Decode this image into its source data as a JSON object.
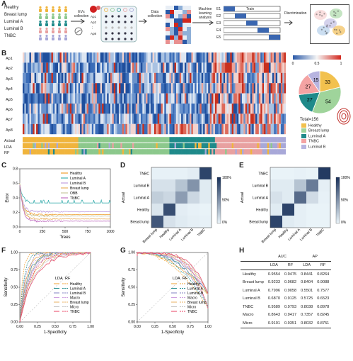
{
  "panel_labels": {
    "A": "A",
    "B": "B",
    "C": "C",
    "D": "D",
    "E": "E",
    "F": "F",
    "G": "G",
    "H": "H"
  },
  "panelA": {
    "groups": [
      "Healthy",
      "Breast lump",
      "Luminal A",
      "Luminal B",
      "TNBC"
    ],
    "group_colors": [
      "#f0b43c",
      "#8cc88c",
      "#1f8a8a",
      "#e8a0a0",
      "#a8a8d8"
    ],
    "step1": "EVs\ncollection",
    "plate_labels": [
      "Ap1",
      "Ap2",
      "⋮",
      "Ap8"
    ],
    "step2": "Data\ncollection",
    "step3": "Machine\nlearning\nanalysis",
    "folds": [
      "E1",
      "E2",
      "E3",
      "E4",
      "E5"
    ],
    "train_label": "Train",
    "step4": "Discrimination"
  },
  "panelB": {
    "rows": [
      "Ap1",
      "Ap2",
      "Ap3",
      "Ap4",
      "Ap5",
      "Ap6",
      "Ap7",
      "Ap8"
    ],
    "annot_rows": [
      "Actual",
      "LDA",
      "RF"
    ],
    "colorbar_ticks": [
      "0",
      "0.5",
      "1"
    ],
    "total_label": "Total=156",
    "pie_legend": [
      "Healthy",
      "Breast lump",
      "Luminal A",
      "TNBC",
      "Luminal B"
    ]
  },
  "panelC": {
    "legend": [
      "Healthy",
      "Luminal A",
      "Luminal B",
      "Breast lump",
      "OBB",
      "TNBC"
    ],
    "legend_colors": [
      "#f0a030",
      "#40b0b0",
      "#c0a0e0",
      "#e8b060",
      "#c8c8a0",
      "#c070c0"
    ],
    "xlabel": "Trees",
    "ylabel": "Error",
    "xticks": [
      "0",
      "250",
      "500",
      "750",
      "1000"
    ],
    "yticks": [
      "0.0",
      "0.2",
      "0.4",
      "0.6",
      "0.8"
    ]
  },
  "panelD": {
    "classes": [
      "Breast lump",
      "Healthy",
      "Luminal A",
      "Luminal B",
      "TNBC"
    ],
    "ylabel": "Actual",
    "xlabel": "Prediction-LDA",
    "accuracy": "Accuracy : 0.7308",
    "cb_ticks": [
      "100%",
      "50%",
      "0%"
    ]
  },
  "panelE": {
    "classes": [
      "Breast lump",
      "Healthy",
      "Luminal A",
      "Luminal B",
      "TNBC"
    ],
    "ylabel": "Actual",
    "xlabel": "Prediction-RF",
    "accuracy": "Accuracy : 0.8333",
    "cb_ticks": [
      "100%",
      "50%",
      "0%"
    ]
  },
  "panelF": {
    "xlabel": "1-Specificity",
    "ylabel": "Sensitivity",
    "xticks": [
      "0.00",
      "0.25",
      "0.50",
      "0.75",
      "1.00"
    ],
    "yticks": [
      "0.00",
      "0.25",
      "0.50",
      "0.75",
      "1.00"
    ],
    "legend_header": [
      "LDA",
      "RF"
    ],
    "legend": [
      "Healthy",
      "Luminal A",
      "Luminal B",
      "Macro",
      "Breast lump",
      "Micro",
      "TNBC"
    ],
    "legend_colors": [
      "#f0a030",
      "#1f8a8a",
      "#8080c0",
      "#d0a0e0",
      "#e8b060",
      "#c0c0c0",
      "#e84060"
    ]
  },
  "panelG": {
    "xlabel": "1-Specificity",
    "ylabel": "Sensitivity",
    "xticks": [
      "0.00",
      "0.25",
      "0.50",
      "0.75",
      "1.00"
    ],
    "yticks": [
      "0.00",
      "0.25",
      "0.50",
      "0.75",
      "1.00"
    ],
    "legend_header": [
      "LDA",
      "RF"
    ],
    "legend": [
      "Healthy",
      "Luminal A",
      "Luminal B",
      "Macro",
      "Breast lump",
      "Micro",
      "TNBC"
    ],
    "legend_colors": [
      "#f0a030",
      "#1f8a8a",
      "#8080c0",
      "#d0a0e0",
      "#e8b060",
      "#c0c0c0",
      "#e84060"
    ]
  },
  "panelH": {
    "header_groups": [
      "AUC",
      "AP"
    ],
    "sub_headers": [
      "LDA",
      "RF",
      "LDA",
      "RF"
    ],
    "rows": [
      {
        "label": "Healthy",
        "values": [
          "0.9554",
          "0.9475",
          "0.8441",
          "0.8264"
        ]
      },
      {
        "label": "Breast lump",
        "values": [
          "0.9233",
          "0.9682",
          "0.8404",
          "0.9088"
        ]
      },
      {
        "label": "Luminal A",
        "values": [
          "0.7996",
          "0.9058",
          "0.5501",
          "0.7577"
        ]
      },
      {
        "label": "Luminal B",
        "values": [
          "0.6870",
          "0.9125",
          "0.5725",
          "0.6523"
        ]
      },
      {
        "label": "TNBC",
        "values": [
          "0.9589",
          "0.9793",
          "0.8038",
          "0.8978"
        ]
      },
      {
        "label": "Macro",
        "values": [
          "0.8643",
          "0.9417",
          "0.7357",
          "0.8245"
        ]
      },
      {
        "label": "Micro",
        "values": [
          "0.9101",
          "0.9351",
          "0.8032",
          "0.8751"
        ]
      }
    ]
  },
  "chart_data": [
    {
      "type": "pie",
      "title": "",
      "categories": [
        "Healthy",
        "Breast lump",
        "Luminal A",
        "TNBC",
        "Luminal B"
      ],
      "values": [
        33,
        54,
        27,
        27,
        15
      ],
      "colors": [
        "#f2c14e",
        "#9fd49b",
        "#1f8a8a",
        "#f4a3a3",
        "#b7b4e0"
      ]
    },
    {
      "type": "heatmap",
      "title": "",
      "rows": [
        "Breast lump",
        "Healthy",
        "Luminal A",
        "Luminal B",
        "TNBC"
      ],
      "columns": [
        "Breast lump",
        "Healthy",
        "Luminal A",
        "Luminal B",
        "TNBC"
      ],
      "values": [
        [
          0.8,
          0.1,
          0.05,
          0.03,
          0.02
        ],
        [
          0.08,
          0.85,
          0.04,
          0.02,
          0.01
        ],
        [
          0.2,
          0.15,
          0.45,
          0.15,
          0.05
        ],
        [
          0.1,
          0.1,
          0.25,
          0.5,
          0.05
        ],
        [
          0.02,
          0.02,
          0.02,
          0.04,
          0.9
        ]
      ],
      "xlabel": "Prediction-LDA",
      "ylabel": "Actual"
    },
    {
      "type": "heatmap",
      "title": "",
      "rows": [
        "Breast lump",
        "Healthy",
        "Luminal A",
        "Luminal B",
        "TNBC"
      ],
      "columns": [
        "Breast lump",
        "Healthy",
        "Luminal A",
        "Luminal B",
        "TNBC"
      ],
      "values": [
        [
          0.9,
          0.05,
          0.03,
          0.01,
          0.01
        ],
        [
          0.05,
          0.9,
          0.03,
          0.01,
          0.01
        ],
        [
          0.1,
          0.05,
          0.7,
          0.13,
          0.02
        ],
        [
          0.05,
          0.05,
          0.25,
          0.62,
          0.03
        ],
        [
          0.01,
          0.01,
          0.02,
          0.01,
          0.95
        ]
      ],
      "xlabel": "Prediction-RF",
      "ylabel": "Actual"
    }
  ]
}
